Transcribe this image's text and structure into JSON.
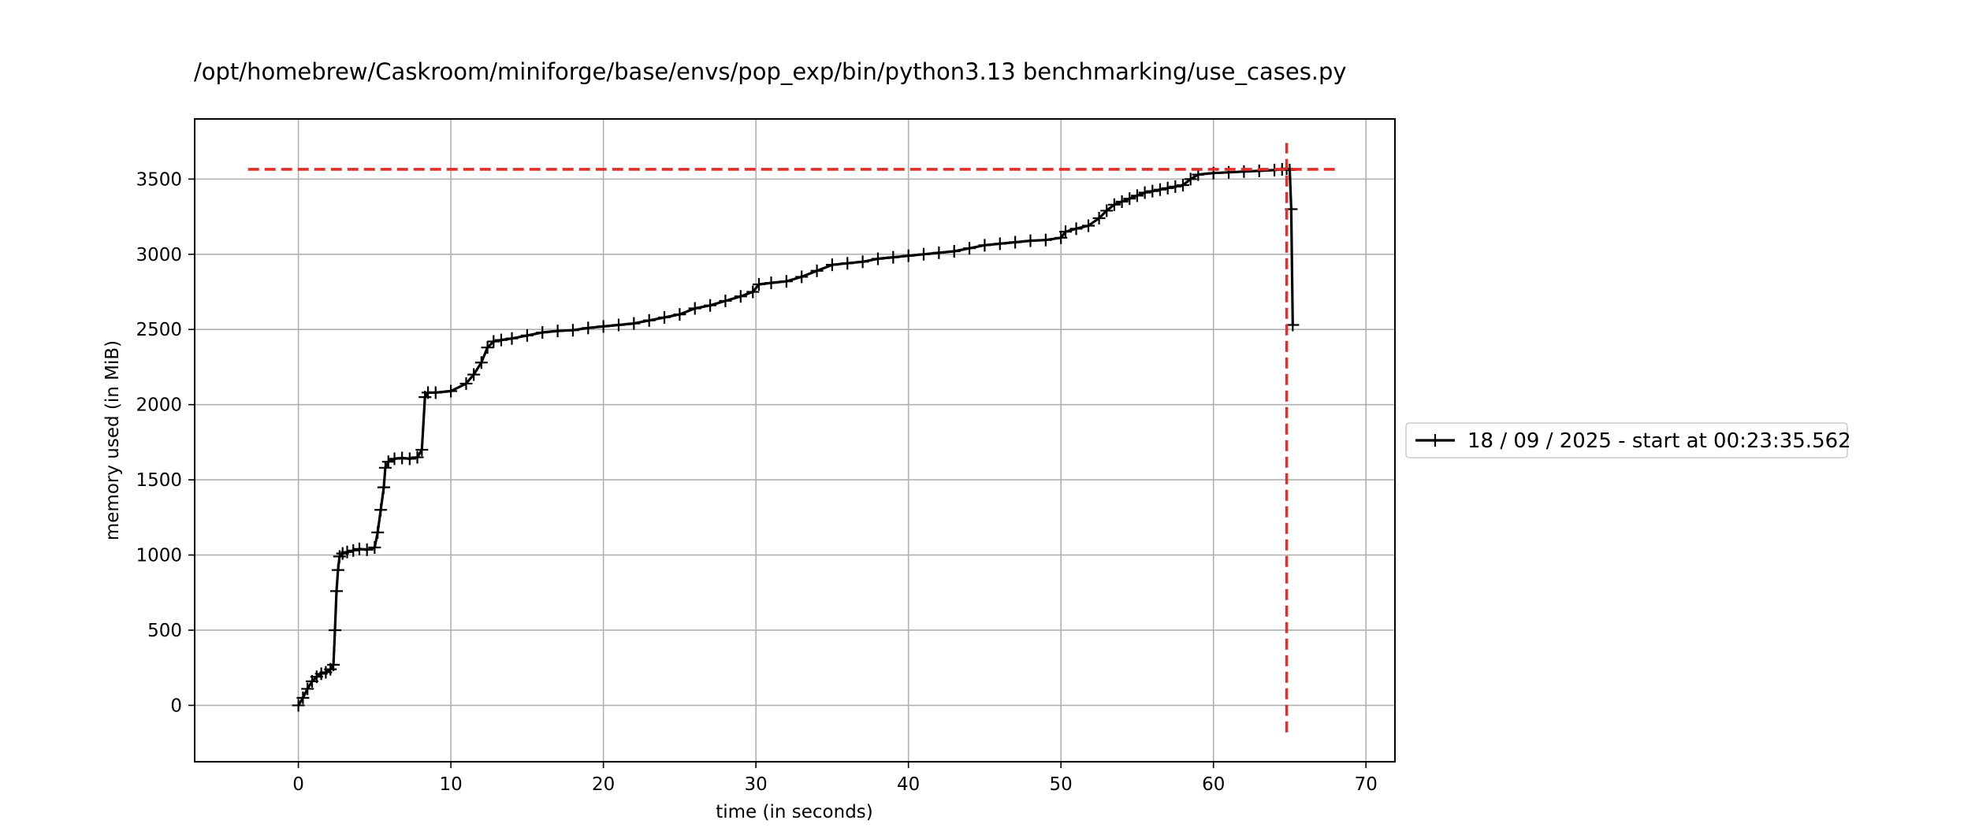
{
  "chart_data": {
    "type": "line",
    "title": "/opt/homebrew/Caskroom/miniforge/base/envs/pop_exp/bin/python3.13 benchmarking/use_cases.py",
    "xlabel": "time (in seconds)",
    "ylabel": "memory used (in MiB)",
    "xlim": [
      -6.8,
      71.9
    ],
    "ylim": [
      -375,
      3900
    ],
    "x_ticks": [
      0,
      10,
      20,
      30,
      40,
      50,
      60,
      70
    ],
    "y_ticks": [
      0,
      500,
      1000,
      1500,
      2000,
      2500,
      3000,
      3500
    ],
    "grid": true,
    "legend_position": "right-outside",
    "series": [
      {
        "name": "18 / 09 / 2025 - start at 00:23:35.562",
        "color": "#000000",
        "marker": "+",
        "x": [
          0,
          0.3,
          0.6,
          0.9,
          1.2,
          1.5,
          1.8,
          2.1,
          2.3,
          2.4,
          2.5,
          2.6,
          2.7,
          2.9,
          3.2,
          3.6,
          4.0,
          4.5,
          5.0,
          5.2,
          5.4,
          5.6,
          5.7,
          5.9,
          6.3,
          6.8,
          7.3,
          7.8,
          8.1,
          8.3,
          8.5,
          9.0,
          10.0,
          11.0,
          11.5,
          12.0,
          12.4,
          12.8,
          13.3,
          14.0,
          15.0,
          16.0,
          17.0,
          18.0,
          19.0,
          20.0,
          21.0,
          22.0,
          23.0,
          24.0,
          25.0,
          26.0,
          27.0,
          28.0,
          29.0,
          29.8,
          30.2,
          31.0,
          32.0,
          33.0,
          34.0,
          35.0,
          36.0,
          37.0,
          38.0,
          39.0,
          40.0,
          41.0,
          42.0,
          43.0,
          44.0,
          45.0,
          46.0,
          47.0,
          48.0,
          49.0,
          50.0,
          50.3,
          51.0,
          51.8,
          52.5,
          53.0,
          53.5,
          54.0,
          54.5,
          55.0,
          55.5,
          56.0,
          56.5,
          57.0,
          57.5,
          58.0,
          58.5,
          59.0,
          60.0,
          61.0,
          62.0,
          63.0,
          64.0,
          64.5,
          64.8,
          65.0,
          65.1,
          65.2
        ],
        "values": [
          0,
          50,
          110,
          160,
          190,
          210,
          220,
          240,
          270,
          500,
          760,
          900,
          990,
          1010,
          1020,
          1030,
          1040,
          1035,
          1050,
          1150,
          1300,
          1450,
          1580,
          1620,
          1640,
          1645,
          1640,
          1650,
          1700,
          2050,
          2080,
          2080,
          2090,
          2140,
          2200,
          2280,
          2380,
          2420,
          2430,
          2440,
          2460,
          2480,
          2490,
          2495,
          2510,
          2520,
          2530,
          2540,
          2560,
          2580,
          2600,
          2640,
          2660,
          2690,
          2720,
          2750,
          2800,
          2810,
          2820,
          2850,
          2890,
          2930,
          2940,
          2950,
          2970,
          2980,
          2990,
          3000,
          3010,
          3020,
          3040,
          3060,
          3070,
          3080,
          3090,
          3095,
          3110,
          3150,
          3170,
          3190,
          3240,
          3290,
          3330,
          3350,
          3370,
          3390,
          3410,
          3420,
          3430,
          3440,
          3450,
          3460,
          3500,
          3530,
          3540,
          3545,
          3550,
          3555,
          3560,
          3565,
          3570,
          3560,
          3300,
          2530
        ]
      }
    ],
    "peak": {
      "x": 64.8,
      "y": 3565,
      "hline_xrange": [
        -3.3,
        68.3
      ],
      "vline_yrange": [
        -180,
        3740
      ],
      "color": "#e0302a"
    }
  }
}
